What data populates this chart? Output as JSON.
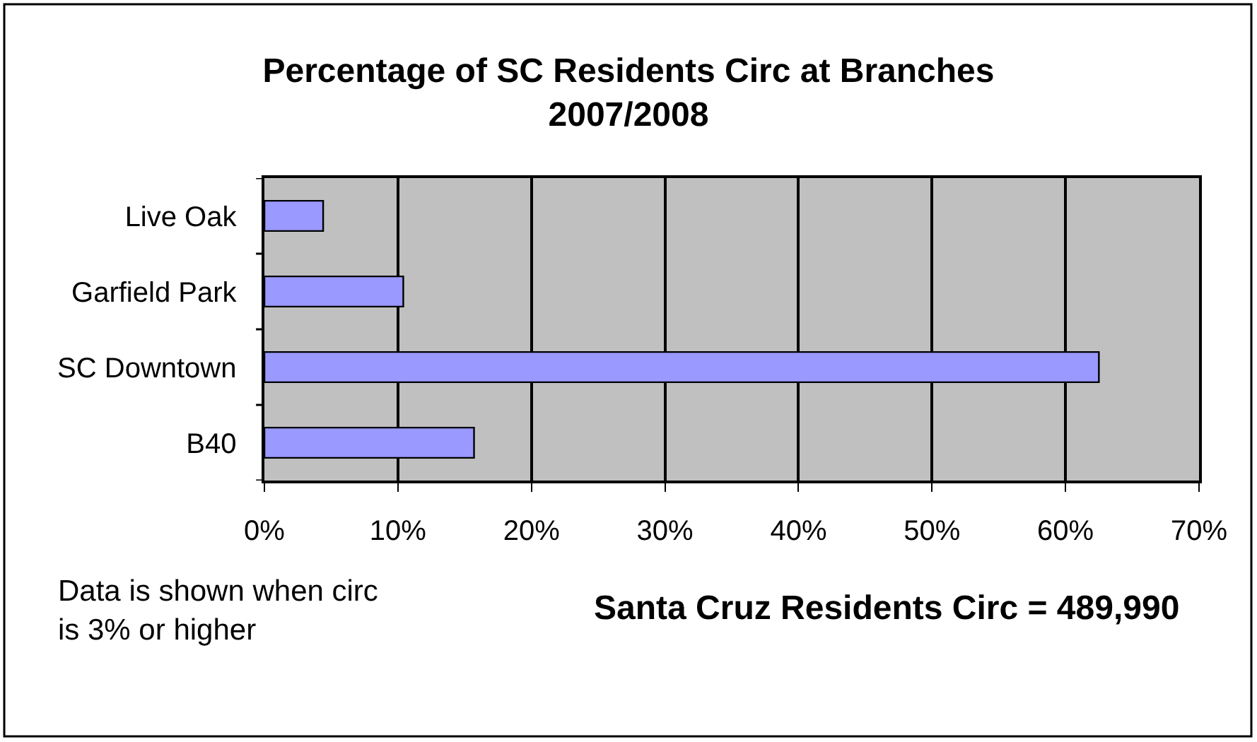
{
  "chart_data": {
    "type": "bar",
    "orientation": "horizontal",
    "title": "Percentage of SC Residents Circ at Branches 2007/2008",
    "categories": [
      "Live Oak",
      "Garfield Park",
      "SC Downtown",
      "B40"
    ],
    "values": [
      4.4,
      10.4,
      62.5,
      15.7
    ],
    "color": "#9999ff",
    "xlim": [
      0,
      70
    ],
    "xticks": [
      {
        "value": 0,
        "label": "0%"
      },
      {
        "value": 10,
        "label": "10%"
      },
      {
        "value": 20,
        "label": "20%"
      },
      {
        "value": 30,
        "label": "30%"
      },
      {
        "value": 40,
        "label": "40%"
      },
      {
        "value": 50,
        "label": "50%"
      },
      {
        "value": 60,
        "label": "60%"
      },
      {
        "value": 70,
        "label": "70%"
      }
    ],
    "grid": "x",
    "annotations": [
      "Data is shown when circ is 3% or higher",
      "Santa Cruz Residents Circ = 489,990"
    ]
  }
}
